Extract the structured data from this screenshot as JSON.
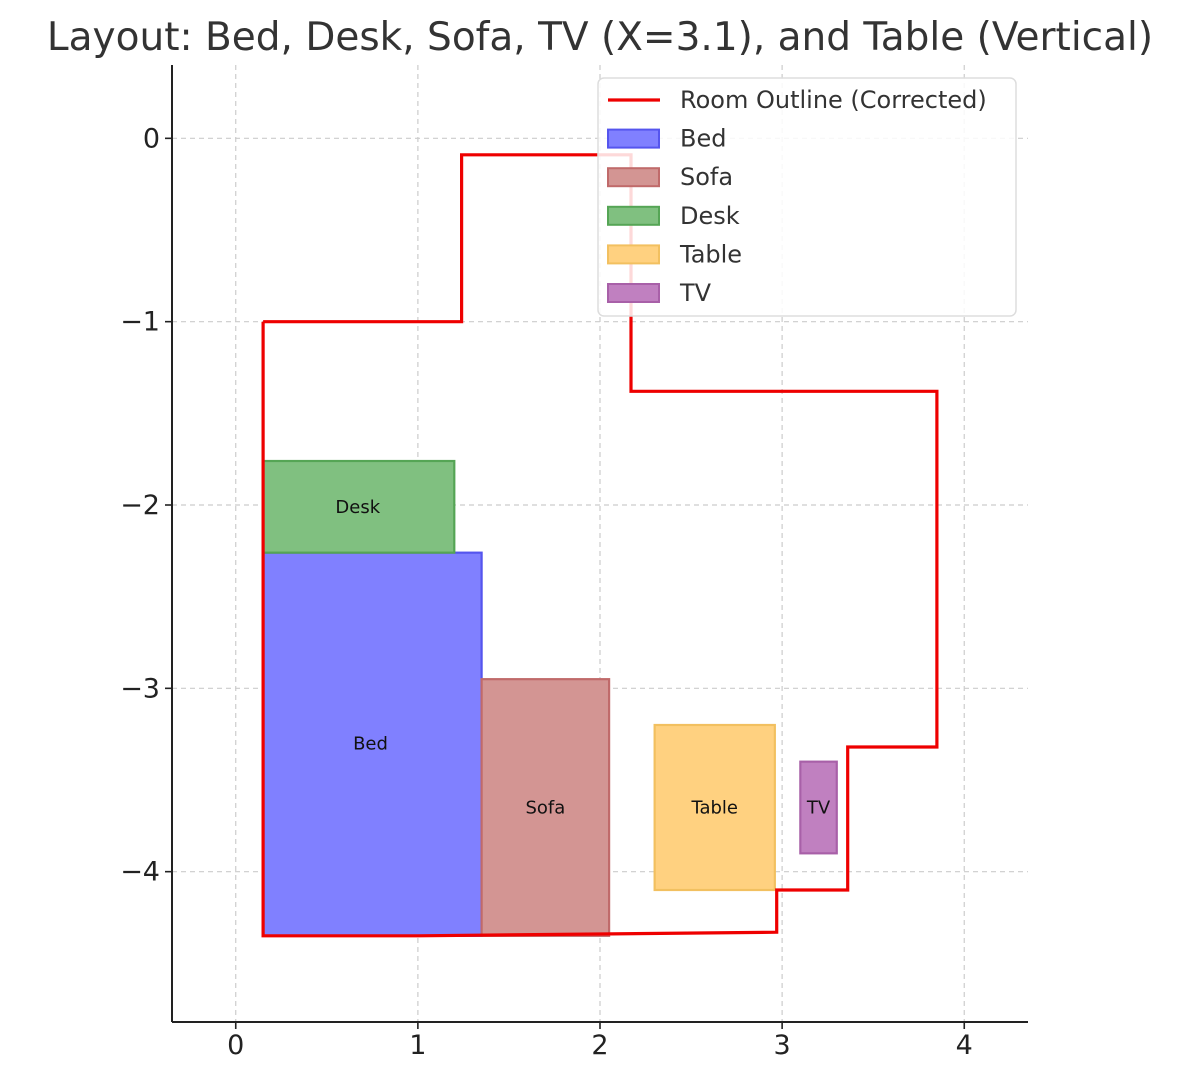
{
  "chart_data": {
    "type": "floor-plan",
    "title": "Layout: Bed, Desk, Sofa, TV (X=3.1), and Table (Vertical)",
    "xlabel": "",
    "ylabel": "",
    "xlim": [
      -0.35,
      4.35
    ],
    "ylim": [
      -4.82,
      0.4
    ],
    "xticks": [
      0,
      1,
      2,
      3,
      4
    ],
    "yticks": [
      0,
      -1,
      -2,
      -3,
      -4
    ],
    "xtick_labels": [
      "0",
      "1",
      "2",
      "3",
      "4"
    ],
    "ytick_labels": [
      "0",
      "−1",
      "−2",
      "−3",
      "−4"
    ],
    "grid": true,
    "legend_position": "top-right",
    "room_outline": {
      "name": "Room Outline (Corrected)",
      "color": "#ee0000",
      "points": [
        [
          0.15,
          -1.0
        ],
        [
          1.24,
          -1.0
        ],
        [
          1.24,
          -0.09
        ],
        [
          2.17,
          -0.09
        ],
        [
          2.17,
          -1.38
        ],
        [
          3.85,
          -1.38
        ],
        [
          3.85,
          -3.32
        ],
        [
          3.36,
          -3.32
        ],
        [
          3.36,
          -4.1
        ],
        [
          2.97,
          -4.1
        ],
        [
          2.97,
          -4.33
        ],
        [
          2.0,
          -4.34
        ],
        [
          1.0,
          -4.35
        ],
        [
          0.15,
          -4.35
        ],
        [
          0.15,
          -1.0
        ]
      ]
    },
    "furniture": [
      {
        "name": "Bed",
        "label": "Bed",
        "x": 0.15,
        "y": -4.35,
        "width": 1.2,
        "height": 2.09,
        "fill": "#8080ff",
        "stroke": "#5555ee",
        "label_pos": [
          0.74,
          -3.3
        ]
      },
      {
        "name": "Sofa",
        "label": "Sofa",
        "x": 1.35,
        "y": -4.35,
        "width": 0.7,
        "height": 1.4,
        "fill": "#d39593",
        "stroke": "#c06a6a",
        "label_pos": [
          1.7,
          -3.65
        ]
      },
      {
        "name": "Desk",
        "label": "Desk",
        "x": 0.15,
        "y": -2.26,
        "width": 1.05,
        "height": 0.5,
        "fill": "#80c080",
        "stroke": "#55a555",
        "label_pos": [
          0.67,
          -2.01
        ]
      },
      {
        "name": "Table",
        "label": "Table",
        "x": 2.3,
        "y": -4.1,
        "width": 0.66,
        "height": 0.9,
        "fill": "#ffd180",
        "stroke": "#f2c060",
        "label_pos": [
          2.63,
          -3.65
        ]
      },
      {
        "name": "TV",
        "label": "TV",
        "x": 3.1,
        "y": -3.9,
        "width": 0.2,
        "height": 0.5,
        "fill": "#c080c0",
        "stroke": "#a860a8",
        "label_pos": [
          3.2,
          -3.65
        ]
      }
    ]
  }
}
